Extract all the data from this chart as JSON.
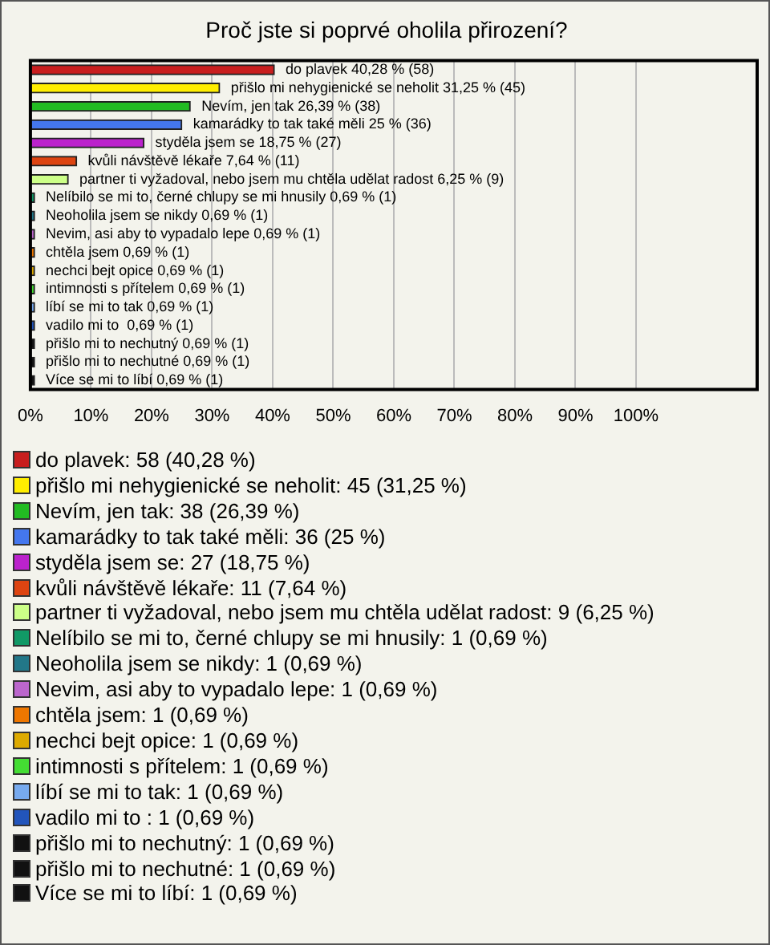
{
  "chart_data": {
    "type": "bar",
    "orientation": "horizontal",
    "title": "Proč jste si poprvé oholila přirození?",
    "categories": [
      "do plavek",
      "přišlo mi nehygienické se neholit",
      "Nevím, jen tak",
      "kamarádky to tak také měli",
      "styděla jsem se",
      "kvůli návštěvě lékaře",
      "partner ti vyžadoval, nebo jsem mu chtěla udělat radost",
      "Nelíbilo se mi to, černé chlupy se mi hnusily",
      "Neoholila jsem se nikdy",
      "Nevim, asi aby to vypadalo lepe",
      "chtěla jsem",
      "nechci bejt opice",
      "intimnosti s přítelem",
      "líbí se mi to tak",
      "vadilo mi to ",
      "přišlo mi to nechutný",
      "přišlo mi to nechutné",
      "Více se mi to líbí"
    ],
    "values": [
      40.28,
      31.25,
      26.39,
      25,
      18.75,
      7.64,
      6.25,
      0.69,
      0.69,
      0.69,
      0.69,
      0.69,
      0.69,
      0.69,
      0.69,
      0.69,
      0.69,
      0.69
    ],
    "value_labels": [
      "40,28 % (58)",
      "31,25 % (45)",
      "26,39 % (38)",
      "25 % (36)",
      "18,75 % (27)",
      "7,64 % (11)",
      "6,25 % (9)",
      "0,69 % (1)",
      "0,69 % (1)",
      "0,69 % (1)",
      "0,69 % (1)",
      "0,69 % (1)",
      "0,69 % (1)",
      "0,69 % (1)",
      "0,69 % (1)",
      "0,69 % (1)",
      "0,69 % (1)",
      "0,69 % (1)"
    ],
    "colors": [
      "#c81e1e",
      "#ffee00",
      "#22bb22",
      "#4477ee",
      "#bb22cc",
      "#dd4411",
      "#ccff88",
      "#119966",
      "#227788",
      "#bb66cc",
      "#ee7700",
      "#ddaa00",
      "#44dd33",
      "#77aaee",
      "#2255bb",
      "#111111",
      "#111111",
      "#111111"
    ],
    "xlim": [
      0,
      120
    ],
    "xticks": [
      {
        "value": 0,
        "label": "0%"
      },
      {
        "value": 10,
        "label": "10%"
      },
      {
        "value": 20,
        "label": "20%"
      },
      {
        "value": 30,
        "label": "30%"
      },
      {
        "value": 40,
        "label": "40%"
      },
      {
        "value": 50,
        "label": "50%"
      },
      {
        "value": 60,
        "label": "60%"
      },
      {
        "value": 70,
        "label": "70%"
      },
      {
        "value": 80,
        "label": "80%"
      },
      {
        "value": 90,
        "label": "90%"
      },
      {
        "value": 100,
        "label": "100%"
      }
    ],
    "grid": "x",
    "tick_labels": "x",
    "annotations": [
      "do plavek: 58 (40,28 %)",
      "přišlo mi nehygienické se neholit: 45 (31,25 %)",
      "Nevím, jen tak: 38 (26,39 %)",
      "kamarádky to tak také měli: 36 (25 %)",
      "styděla jsem se: 27 (18,75 %)",
      "kvůli návštěvě lékaře: 11 (7,64 %)",
      "partner ti vyžadoval, nebo jsem mu chtěla udělat radost: 9 (6,25 %)",
      "Nelíbilo se mi to, černé chlupy se mi hnusily: 1 (0,69 %)",
      "Neoholila jsem se nikdy: 1 (0,69 %)",
      "Nevim, asi aby to vypadalo lepe: 1 (0,69 %)",
      "chtěla jsem: 1 (0,69 %)",
      "nechci bejt opice: 1 (0,69 %)",
      "intimnosti s přítelem: 1 (0,69 %)",
      "líbí se mi to tak: 1 (0,69 %)",
      "vadilo mi to : 1 (0,69 %)",
      "přišlo mi to nechutný: 1 (0,69 %)",
      "přišlo mi to nechutné: 1 (0,69 %)",
      "Více se mi to líbí: 1 (0,69 %)"
    ]
  }
}
